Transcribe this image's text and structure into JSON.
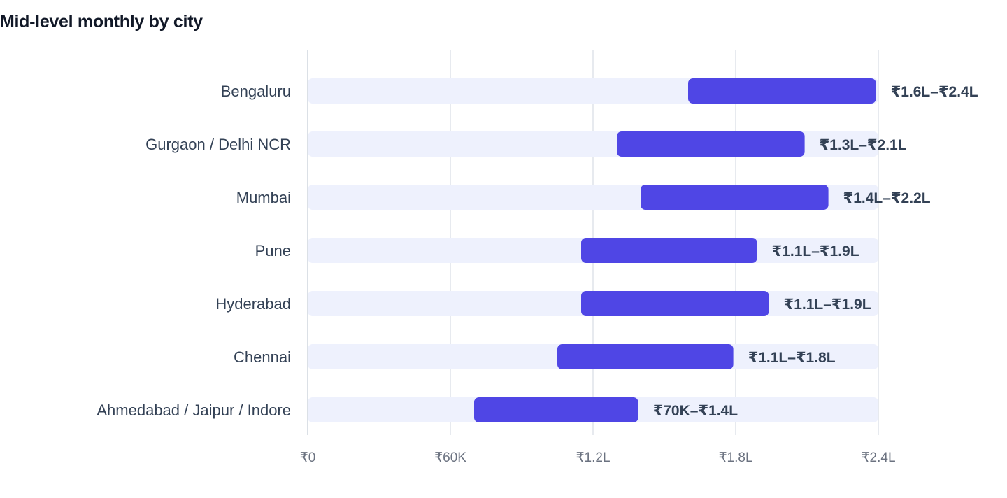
{
  "chart_data": {
    "type": "bar",
    "subtype": "floating-range",
    "orientation": "horizontal",
    "title": "Mid-level monthly by city",
    "xlabel": "",
    "ylabel": "",
    "xlim": [
      0,
      240000
    ],
    "grid": true,
    "accent_color": "#4f46e5",
    "track_color": "#eef1fd",
    "x_ticks": [
      {
        "value": 0,
        "label": "₹0"
      },
      {
        "value": 60000,
        "label": "₹60K"
      },
      {
        "value": 120000,
        "label": "₹1.2L"
      },
      {
        "value": 180000,
        "label": "₹1.8L"
      },
      {
        "value": 240000,
        "label": "₹2.4L"
      }
    ],
    "categories": [
      {
        "name": "Bengaluru",
        "min": 160000,
        "max": 239000,
        "label": "₹1.6L–₹2.4L"
      },
      {
        "name": "Gurgaon / Delhi NCR",
        "min": 130000,
        "max": 209000,
        "label": "₹1.3L–₹2.1L"
      },
      {
        "name": "Mumbai",
        "min": 140000,
        "max": 219000,
        "label": "₹1.4L–₹2.2L"
      },
      {
        "name": "Pune",
        "min": 115000,
        "max": 189000,
        "label": "₹1.1L–₹1.9L"
      },
      {
        "name": "Hyderabad",
        "min": 115000,
        "max": 194000,
        "label": "₹1.1L–₹1.9L"
      },
      {
        "name": "Chennai",
        "min": 105000,
        "max": 179000,
        "label": "₹1.1L–₹1.8L"
      },
      {
        "name": "Ahmedabad / Jaipur / Indore",
        "min": 70000,
        "max": 139000,
        "label": "₹70K–₹1.4L"
      }
    ]
  }
}
